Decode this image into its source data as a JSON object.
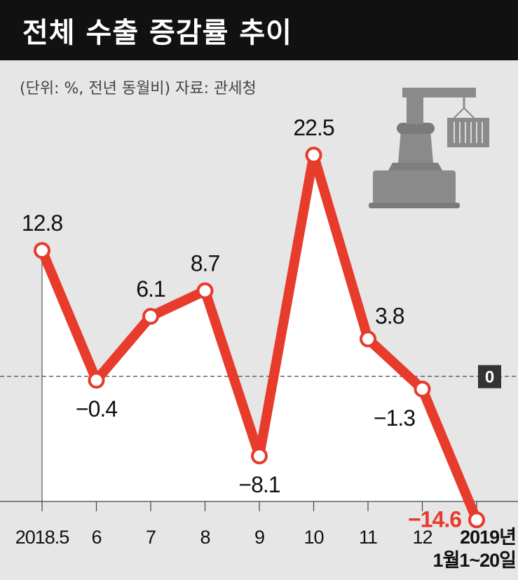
{
  "header": {
    "title": "전체 수출 증감률 추이",
    "unit_source": "(단위: %, 전년 동월비)  자료: 관세청"
  },
  "colors": {
    "line": "#e73b2c",
    "marker_fill": "#ffffff",
    "background": "#e6e6e6",
    "area": "#ffffff",
    "title_bg": "#111111",
    "zero_badge": "#333333",
    "last_label": "#e73b2c"
  },
  "icons": {
    "illustration": "port-crane-container-icon"
  },
  "chart_data": {
    "type": "line",
    "title": "전체 수출 증감률 추이",
    "categories": [
      "2018.5",
      "6",
      "7",
      "8",
      "9",
      "10",
      "11",
      "12",
      "2019년 1월1~20일"
    ],
    "category_lines": [
      [
        "2018.5"
      ],
      [
        "6"
      ],
      [
        "7"
      ],
      [
        "8"
      ],
      [
        "9"
      ],
      [
        "10"
      ],
      [
        "11"
      ],
      [
        "12"
      ],
      [
        "2019년",
        "1월1~20일"
      ]
    ],
    "values": [
      12.8,
      -0.4,
      6.1,
      8.7,
      -8.1,
      22.5,
      3.8,
      -1.3,
      -14.6
    ],
    "value_labels": [
      "12.8",
      "−0.4",
      "6.1",
      "8.7",
      "−8.1",
      "22.5",
      "3.8",
      "−1.3",
      "−14.6"
    ],
    "ylim": [
      -22,
      29
    ],
    "reference_line": {
      "value": 0,
      "label": "0",
      "style": "dashed"
    },
    "grid": false,
    "legend": "none"
  }
}
